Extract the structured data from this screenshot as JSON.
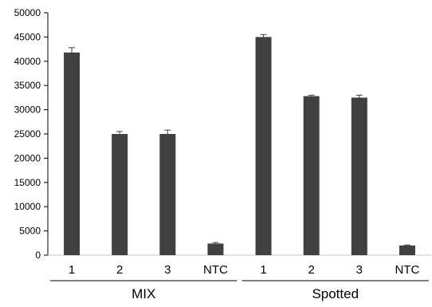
{
  "chart_data": {
    "type": "bar",
    "title": "",
    "xlabel": "",
    "ylabel": "",
    "ylim": [
      0,
      50000
    ],
    "yticks": [
      0,
      5000,
      10000,
      15000,
      20000,
      25000,
      30000,
      35000,
      40000,
      45000,
      50000
    ],
    "grid": false,
    "legend": "none",
    "bar_color": "#404040",
    "groups": [
      {
        "name": "MIX",
        "categories": [
          "1",
          "2",
          "3",
          "NTC"
        ],
        "values": [
          41800,
          25000,
          25000,
          2400
        ],
        "errors": [
          1000,
          500,
          800,
          200
        ]
      },
      {
        "name": "Spotted",
        "categories": [
          "1",
          "2",
          "3",
          "NTC"
        ],
        "values": [
          45000,
          32800,
          32500,
          2000
        ],
        "errors": [
          500,
          200,
          500,
          100
        ]
      }
    ]
  }
}
